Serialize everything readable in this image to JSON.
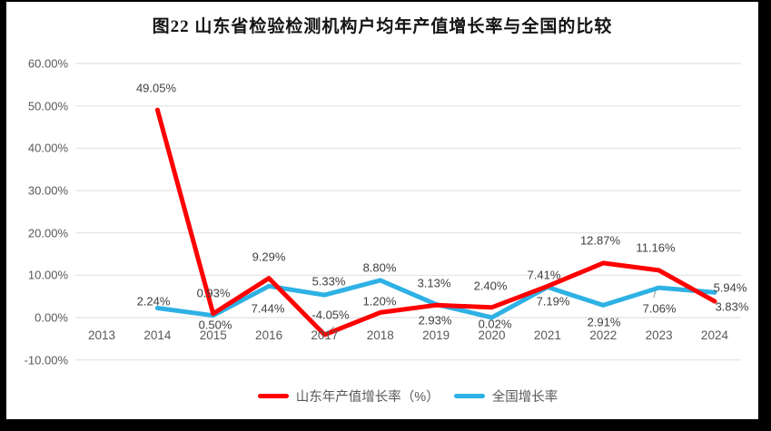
{
  "title": "图22 山东省检验检测机构户均年产值增长率与全国的比较",
  "chart_data": {
    "type": "line",
    "title": "图22 山东省检验检测机构户均年产值增长率与全国的比较",
    "categories": [
      "2013",
      "2014",
      "2015",
      "2016",
      "2017",
      "2018",
      "2019",
      "2020",
      "2021",
      "2022",
      "2023",
      "2024"
    ],
    "series": [
      {
        "name": "山东年产值增长率（%）",
        "color": "#fe0000",
        "values": [
          null,
          49.05,
          0.93,
          9.29,
          -4.05,
          1.2,
          2.93,
          2.4,
          7.41,
          12.87,
          11.16,
          3.83
        ],
        "labels": [
          null,
          "49.05%",
          "0.93%",
          "9.29%",
          "-4.05%",
          "1.20%",
          "2.93%",
          "2.40%",
          "7.41%",
          "12.87%",
          "11.16%",
          "3.83%"
        ]
      },
      {
        "name": "全国增长率",
        "color": "#2eb1e4",
        "values": [
          null,
          2.24,
          0.5,
          7.44,
          5.33,
          8.8,
          3.13,
          0.02,
          7.19,
          2.91,
          7.06,
          5.94
        ],
        "labels": [
          null,
          "2.24%",
          "0.50%",
          "7.44%",
          "5.33%",
          "8.80%",
          "3.13%",
          "0.02%",
          "7.19%",
          "2.91%",
          "7.06%",
          "5.94%"
        ]
      }
    ],
    "y_ticks": [
      "60.00%",
      "50.00%",
      "40.00%",
      "30.00%",
      "20.00%",
      "10.00%",
      "0.00%",
      "-10.00%"
    ],
    "y_tick_values": [
      60,
      50,
      40,
      30,
      20,
      10,
      0,
      -10
    ],
    "ylim": [
      -10,
      60
    ],
    "grid": true,
    "legend_position": "bottom",
    "colors": {
      "gridline": "#e2e2e2",
      "axis_text": "#595959",
      "data_label_text": "#3f3f3f",
      "leader_line": "#a6a6a6"
    }
  }
}
